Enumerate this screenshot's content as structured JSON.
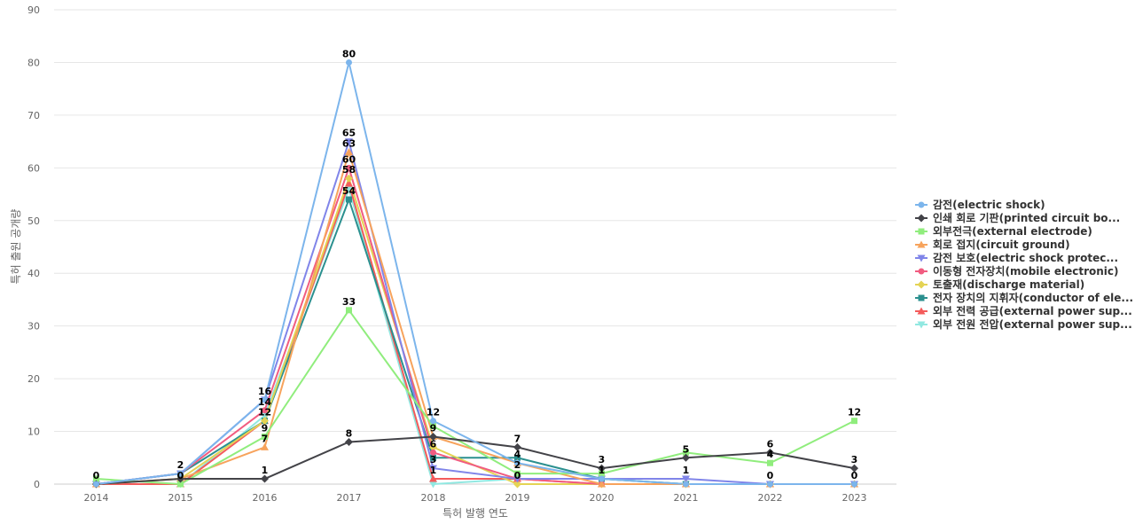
{
  "chart_data": {
    "type": "line",
    "title": "",
    "xlabel": "특허 발행 연도",
    "ylabel": "특허 출원 공개량",
    "ylim": [
      0,
      90
    ],
    "yticks": [
      0,
      10,
      20,
      30,
      40,
      50,
      60,
      70,
      80,
      90
    ],
    "grid": true,
    "legend_position": "right",
    "categories": [
      "2014",
      "2015",
      "2016",
      "2017",
      "2018",
      "2019",
      "2020",
      "2021",
      "2022",
      "2023"
    ],
    "series": [
      {
        "name": "감전(electric shock)",
        "color": "#7cb5ec",
        "marker": "circle",
        "values": [
          0,
          2,
          16,
          80,
          12,
          4,
          1,
          0,
          0,
          0
        ]
      },
      {
        "name": "인쇄 회로 기판(printed circuit bo...",
        "color": "#434348",
        "marker": "diamond",
        "values": [
          0,
          1,
          1,
          8,
          9,
          7,
          3,
          5,
          6,
          3
        ]
      },
      {
        "name": "외부전극(external electrode)",
        "color": "#90ed7d",
        "marker": "square",
        "values": [
          1,
          0,
          9,
          33,
          11,
          2,
          2,
          6,
          4,
          12
        ]
      },
      {
        "name": "회로 접지(circuit ground)",
        "color": "#f7a35c",
        "marker": "triangle",
        "values": [
          0,
          1,
          7,
          63,
          9,
          4,
          0,
          0,
          0,
          0
        ]
      },
      {
        "name": "감전 보호(electric shock protec...",
        "color": "#8085e9",
        "marker": "triangle-down",
        "values": [
          0,
          2,
          16,
          65,
          3,
          1,
          1,
          1,
          0,
          0
        ]
      },
      {
        "name": "이동형 전자장치(mobile electronic)",
        "color": "#f15c80",
        "marker": "circle",
        "values": [
          0,
          2,
          14,
          60,
          6,
          1,
          0,
          0,
          0,
          0
        ]
      },
      {
        "name": "토출재(discharge material)",
        "color": "#e4d354",
        "marker": "diamond",
        "values": [
          0,
          1,
          12,
          58,
          7,
          0,
          0,
          0,
          0,
          0
        ]
      },
      {
        "name": "전자 장치의 지휘자(conductor of ele...",
        "color": "#2b908f",
        "marker": "square",
        "values": [
          0,
          2,
          12,
          54,
          5,
          5,
          1,
          0,
          0,
          0
        ]
      },
      {
        "name": "외부 전력 공급(external power sup...",
        "color": "#f45b5b",
        "marker": "triangle",
        "values": [
          0,
          0,
          12,
          57,
          1,
          1,
          0,
          0,
          0,
          0
        ]
      },
      {
        "name": "외부 전원 전압(external power sup...",
        "color": "#91e8e1",
        "marker": "triangle-down",
        "values": [
          0,
          0,
          13,
          56,
          0,
          1,
          1,
          0,
          0,
          0
        ]
      }
    ],
    "data_labels": [
      {
        "x": "2014",
        "text": "0",
        "series": 0
      },
      {
        "x": "2015",
        "text": "2",
        "series": 0
      },
      {
        "x": "2015",
        "text": "0",
        "series": 2
      },
      {
        "x": "2016",
        "text": "16",
        "series": 0
      },
      {
        "x": "2016",
        "text": "14",
        "series": 5
      },
      {
        "x": "2016",
        "text": "12",
        "series": 6
      },
      {
        "x": "2016",
        "text": "9",
        "series": 2
      },
      {
        "x": "2016",
        "text": "7",
        "series": 3
      },
      {
        "x": "2016",
        "text": "1",
        "series": 1
      },
      {
        "x": "2017",
        "text": "80",
        "series": 0
      },
      {
        "x": "2017",
        "text": "65",
        "series": 4
      },
      {
        "x": "2017",
        "text": "63",
        "series": 3
      },
      {
        "x": "2017",
        "text": "60",
        "series": 5
      },
      {
        "x": "2017",
        "text": "58",
        "series": 6
      },
      {
        "x": "2017",
        "text": "54",
        "series": 7
      },
      {
        "x": "2017",
        "text": "33",
        "series": 2
      },
      {
        "x": "2017",
        "text": "8",
        "series": 1
      },
      {
        "x": "2018",
        "text": "12",
        "series": 0
      },
      {
        "x": "2018",
        "text": "9",
        "series": 3
      },
      {
        "x": "2018",
        "text": "6",
        "series": 5
      },
      {
        "x": "2018",
        "text": "3",
        "series": 4
      },
      {
        "x": "2018",
        "text": "1",
        "series": 8
      },
      {
        "x": "2019",
        "text": "7",
        "series": 1
      },
      {
        "x": "2019",
        "text": "4",
        "series": 0
      },
      {
        "x": "2019",
        "text": "2",
        "series": 2
      },
      {
        "x": "2019",
        "text": "0",
        "series": 6
      },
      {
        "x": "2020",
        "text": "3",
        "series": 1
      },
      {
        "x": "2020",
        "text": "1",
        "series": 0
      },
      {
        "x": "2021",
        "text": "5",
        "series": 1
      },
      {
        "x": "2021",
        "text": "1",
        "series": 4
      },
      {
        "x": "2022",
        "text": "6",
        "series": 1
      },
      {
        "x": "2022",
        "text": "4",
        "series": 2
      },
      {
        "x": "2022",
        "text": "0",
        "series": 0
      },
      {
        "x": "2023",
        "text": "12",
        "series": 2
      },
      {
        "x": "2023",
        "text": "3",
        "series": 1
      },
      {
        "x": "2023",
        "text": "0",
        "series": 0
      }
    ]
  }
}
